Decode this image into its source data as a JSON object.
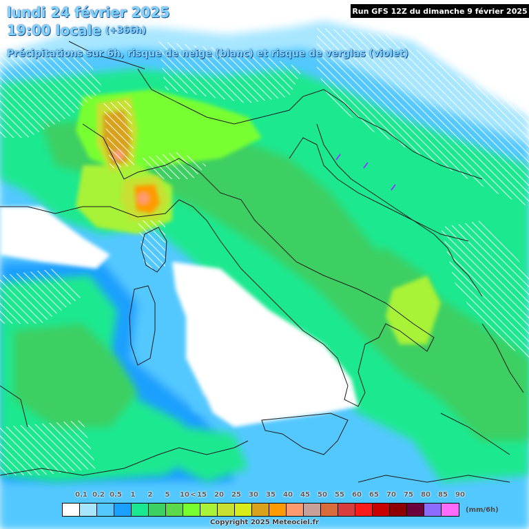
{
  "header": {
    "date_line": "lundi 24 février 2025",
    "time_line": "19:00 locale",
    "lead_time": "(+366h)",
    "description": "Précipitations sur 6h, risque de neige (blanc) et risque de verglas (violet)",
    "run_info": "Run GFS 12Z du dimanche 9 février 2025"
  },
  "legend": {
    "unit": "(mm/6h)",
    "items": [
      {
        "label": "0.1",
        "color": "#ffffff"
      },
      {
        "label": "0.2",
        "color": "#a8e6ff"
      },
      {
        "label": "0.5",
        "color": "#52c8ff"
      },
      {
        "label": "1",
        "color": "#1aa0ff"
      },
      {
        "label": "2",
        "color": "#1ae890"
      },
      {
        "label": "5",
        "color": "#3ccf62"
      },
      {
        "label": "10",
        "color": "#5cd94a"
      },
      {
        "label": "15",
        "color": "#78ff30"
      },
      {
        "label": "20",
        "color": "#a8f238"
      },
      {
        "label": "25",
        "color": "#c8e032"
      },
      {
        "label": "30",
        "color": "#d8ec1c"
      },
      {
        "label": "35",
        "color": "#d8a21c"
      },
      {
        "label": "40",
        "color": "#ff9a00"
      },
      {
        "label": "45",
        "color": "#ff9a6e"
      },
      {
        "label": "50",
        "color": "#c8a09a"
      },
      {
        "label": "55",
        "color": "#d86c3c"
      },
      {
        "label": "60",
        "color": "#d83c3c"
      },
      {
        "label": "65",
        "color": "#ff1a1a"
      },
      {
        "label": "70",
        "color": "#c80000"
      },
      {
        "label": "75",
        "color": "#8c0000"
      },
      {
        "label": "80",
        "color": "#6c003c"
      },
      {
        "label": "85",
        "color": "#8c6cff"
      },
      {
        "label": "90",
        "color": "#ff6cff"
      }
    ],
    "arrow_glyph": "<"
  },
  "footer": {
    "copyright": "Copyright 2025 Meteociel.fr"
  }
}
